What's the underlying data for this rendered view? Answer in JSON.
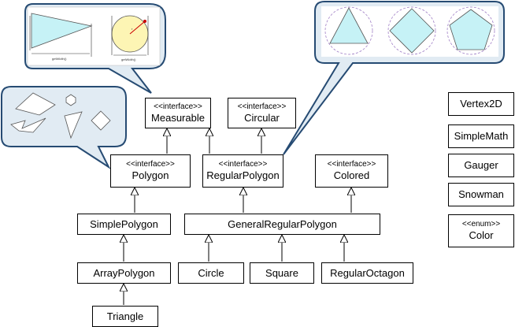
{
  "classes": {
    "measurable": {
      "stereotype": "<<interface>>",
      "name": "Measurable"
    },
    "circular": {
      "stereotype": "<<interface>>",
      "name": "Circular"
    },
    "polygon": {
      "stereotype": "<<interface>>",
      "name": "Polygon"
    },
    "regular_polygon": {
      "stereotype": "<<interface>>",
      "name": "RegularPolygon"
    },
    "colored": {
      "stereotype": "<<interface>>",
      "name": "Colored"
    },
    "simple_polygon": {
      "name": "SimplePolygon"
    },
    "general_regular_polygon": {
      "name": "GeneralRegularPolygon"
    },
    "array_polygon": {
      "name": "ArrayPolygon"
    },
    "circle": {
      "name": "Circle"
    },
    "square": {
      "name": "Square"
    },
    "regular_octagon": {
      "name": "RegularOctagon"
    },
    "triangle": {
      "name": "Triangle"
    },
    "vertex2d": {
      "name": "Vertex2D"
    },
    "simple_math": {
      "name": "SimpleMath"
    },
    "gauger": {
      "name": "Gauger"
    },
    "snowman": {
      "name": "Snowman"
    },
    "color": {
      "stereotype": "<<enum>>",
      "name": "Color"
    }
  },
  "callouts": {
    "measure_width_label_1": "getWidth()",
    "measure_width_label_2": "getWidth()",
    "measure_radius_label": "r"
  },
  "colors": {
    "bubble_fill": "#e1ebf3",
    "bubble_stroke": "#264b73",
    "shape_fill": "#c6f2f6",
    "circle_fill": "#fdf5b4",
    "circumcircle": "#a07fc6"
  }
}
